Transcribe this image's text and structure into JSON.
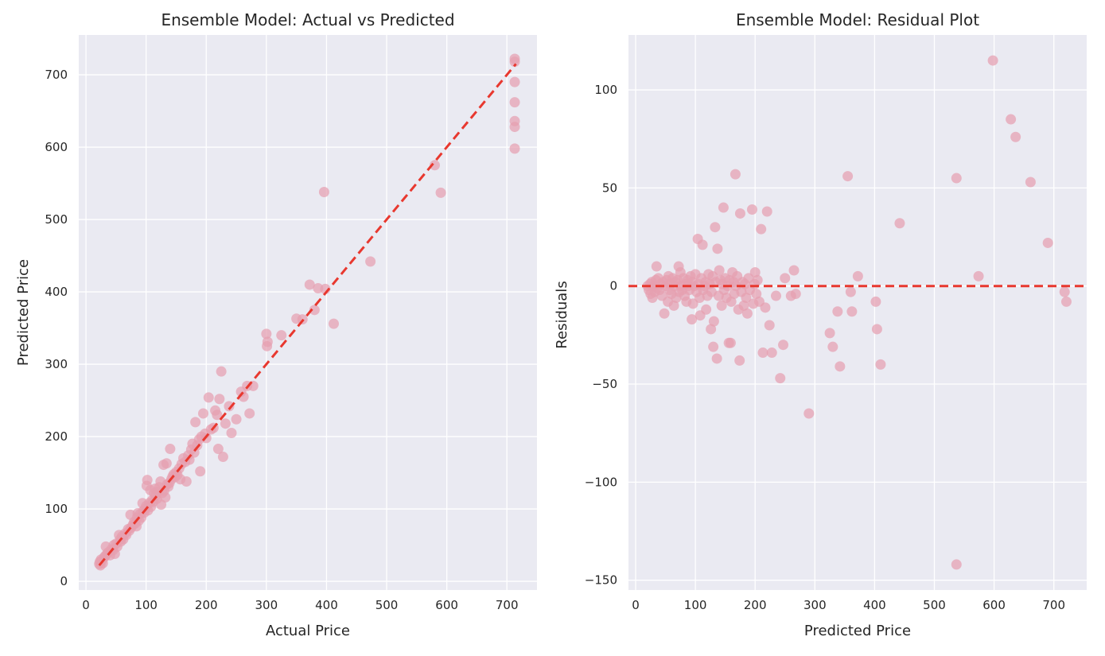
{
  "colors": {
    "panel_bg": "#eaeaf2",
    "grid": "#ffffff",
    "point": "#e69fb0",
    "ref_line": "#e8382f",
    "text": "#262626"
  },
  "chart_data": [
    {
      "type": "scatter",
      "title": "Ensemble Model: Actual vs Predicted",
      "xlabel": "Actual Price",
      "ylabel": "Predicted Price",
      "xlim": [
        -12,
        750
      ],
      "ylim": [
        -12,
        755
      ],
      "xticks": [
        0,
        100,
        200,
        300,
        400,
        500,
        600,
        700
      ],
      "yticks": [
        0,
        100,
        200,
        300,
        400,
        500,
        600,
        700
      ],
      "grid": true,
      "reference_line": {
        "style": "dashed",
        "from": [
          22,
          22
        ],
        "to": [
          715,
          715
        ]
      },
      "points": [
        [
          22,
          24
        ],
        [
          23,
          27
        ],
        [
          24,
          22
        ],
        [
          25,
          30
        ],
        [
          26,
          28
        ],
        [
          28,
          25
        ],
        [
          30,
          33
        ],
        [
          32,
          35
        ],
        [
          33,
          48
        ],
        [
          35,
          38
        ],
        [
          37,
          40
        ],
        [
          40,
          36
        ],
        [
          42,
          44
        ],
        [
          45,
          43
        ],
        [
          46,
          50
        ],
        [
          48,
          38
        ],
        [
          50,
          52
        ],
        [
          52,
          48
        ],
        [
          55,
          64
        ],
        [
          57,
          58
        ],
        [
          58,
          55
        ],
        [
          60,
          62
        ],
        [
          62,
          58
        ],
        [
          65,
          66
        ],
        [
          67,
          64
        ],
        [
          70,
          72
        ],
        [
          72,
          70
        ],
        [
          74,
          92
        ],
        [
          75,
          74
        ],
        [
          78,
          78
        ],
        [
          80,
          82
        ],
        [
          82,
          80
        ],
        [
          84,
          76
        ],
        [
          85,
          88
        ],
        [
          86,
          94
        ],
        [
          88,
          84
        ],
        [
          90,
          93
        ],
        [
          92,
          88
        ],
        [
          94,
          108
        ],
        [
          95,
          97
        ],
        [
          97,
          95
        ],
        [
          98,
          100
        ],
        [
          100,
          104
        ],
        [
          101,
          132
        ],
        [
          102,
          140
        ],
        [
          103,
          98
        ],
        [
          105,
          108
        ],
        [
          107,
          126
        ],
        [
          108,
          103
        ],
        [
          110,
          112
        ],
        [
          112,
          110
        ],
        [
          113,
          122
        ],
        [
          115,
          128
        ],
        [
          116,
          118
        ],
        [
          118,
          114
        ],
        [
          120,
          124
        ],
        [
          122,
          130
        ],
        [
          124,
          138
        ],
        [
          125,
          106
        ],
        [
          127,
          122
        ],
        [
          129,
          161
        ],
        [
          130,
          125
        ],
        [
          132,
          116
        ],
        [
          134,
          163
        ],
        [
          135,
          134
        ],
        [
          137,
          131
        ],
        [
          139,
          136
        ],
        [
          140,
          183
        ],
        [
          142,
          141
        ],
        [
          144,
          145
        ],
        [
          146,
          148
        ],
        [
          148,
          144
        ],
        [
          150,
          151
        ],
        [
          152,
          147
        ],
        [
          155,
          156
        ],
        [
          157,
          141
        ],
        [
          159,
          162
        ],
        [
          162,
          170
        ],
        [
          165,
          165
        ],
        [
          167,
          138
        ],
        [
          170,
          174
        ],
        [
          172,
          168
        ],
        [
          175,
          182
        ],
        [
          177,
          190
        ],
        [
          180,
          178
        ],
        [
          182,
          220
        ],
        [
          185,
          188
        ],
        [
          188,
          196
        ],
        [
          190,
          152
        ],
        [
          192,
          200
        ],
        [
          195,
          232
        ],
        [
          198,
          204
        ],
        [
          200,
          198
        ],
        [
          204,
          254
        ],
        [
          208,
          210
        ],
        [
          212,
          212
        ],
        [
          215,
          236
        ],
        [
          218,
          230
        ],
        [
          220,
          183
        ],
        [
          222,
          252
        ],
        [
          225,
          290
        ],
        [
          228,
          172
        ],
        [
          232,
          218
        ],
        [
          238,
          242
        ],
        [
          242,
          205
        ],
        [
          250,
          224
        ],
        [
          258,
          262
        ],
        [
          262,
          255
        ],
        [
          268,
          270
        ],
        [
          272,
          232
        ],
        [
          278,
          270
        ],
        [
          300,
          342
        ],
        [
          301,
          325
        ],
        [
          302,
          331
        ],
        [
          325,
          340
        ],
        [
          350,
          363
        ],
        [
          360,
          362
        ],
        [
          372,
          410
        ],
        [
          380,
          375
        ],
        [
          386,
          405
        ],
        [
          396,
          538
        ],
        [
          398,
          404
        ],
        [
          412,
          356
        ],
        [
          473,
          442
        ],
        [
          580,
          575
        ],
        [
          590,
          537
        ],
        [
          713,
          598
        ],
        [
          713,
          628
        ],
        [
          713,
          636
        ],
        [
          713,
          662
        ],
        [
          713,
          690
        ],
        [
          713,
          718
        ],
        [
          713,
          722
        ]
      ]
    },
    {
      "type": "scatter",
      "title": "Ensemble Model: Residual Plot",
      "xlabel": "Predicted Price",
      "ylabel": "Residuals",
      "xlim": [
        -12,
        755
      ],
      "ylim": [
        -155,
        128
      ],
      "xticks": [
        0,
        100,
        200,
        300,
        400,
        500,
        600,
        700
      ],
      "yticks": [
        -150,
        -100,
        -50,
        0,
        50,
        100
      ],
      "yticklabels": [
        "−150",
        "−100",
        "−50",
        "0",
        "50",
        "100"
      ],
      "grid": true,
      "reference_line": {
        "style": "dashed",
        "y": 0
      },
      "points": [
        [
          20,
          0
        ],
        [
          22,
          -2
        ],
        [
          24,
          1
        ],
        [
          25,
          -4
        ],
        [
          27,
          2
        ],
        [
          28,
          -6
        ],
        [
          30,
          0
        ],
        [
          32,
          -3
        ],
        [
          34,
          3
        ],
        [
          35,
          10
        ],
        [
          36,
          -1
        ],
        [
          38,
          4
        ],
        [
          40,
          -2
        ],
        [
          42,
          1
        ],
        [
          44,
          -5
        ],
        [
          46,
          2
        ],
        [
          48,
          -14
        ],
        [
          50,
          0
        ],
        [
          52,
          3
        ],
        [
          54,
          -8
        ],
        [
          55,
          5
        ],
        [
          57,
          -2
        ],
        [
          58,
          1
        ],
        [
          60,
          -4
        ],
        [
          62,
          4
        ],
        [
          64,
          -10
        ],
        [
          65,
          0
        ],
        [
          67,
          2
        ],
        [
          68,
          -6
        ],
        [
          70,
          3
        ],
        [
          72,
          10
        ],
        [
          73,
          -3
        ],
        [
          75,
          7
        ],
        [
          76,
          0
        ],
        [
          78,
          -2
        ],
        [
          80,
          4
        ],
        [
          82,
          -5
        ],
        [
          84,
          1
        ],
        [
          85,
          -8
        ],
        [
          87,
          3
        ],
        [
          88,
          0
        ],
        [
          90,
          -2
        ],
        [
          92,
          5
        ],
        [
          94,
          -17
        ],
        [
          95,
          2
        ],
        [
          96,
          -9
        ],
        [
          98,
          0
        ],
        [
          100,
          6
        ],
        [
          102,
          -3
        ],
        [
          104,
          24
        ],
        [
          105,
          1
        ],
        [
          107,
          -6
        ],
        [
          108,
          -15
        ],
        [
          110,
          4
        ],
        [
          112,
          21
        ],
        [
          113,
          -2
        ],
        [
          115,
          0
        ],
        [
          117,
          2
        ],
        [
          118,
          -12
        ],
        [
          120,
          -5
        ],
        [
          122,
          6
        ],
        [
          124,
          1
        ],
        [
          126,
          -22
        ],
        [
          127,
          -3
        ],
        [
          129,
          5
        ],
        [
          130,
          -31
        ],
        [
          131,
          -18
        ],
        [
          133,
          30
        ],
        [
          134,
          2
        ],
        [
          136,
          -37
        ],
        [
          137,
          19
        ],
        [
          139,
          -5
        ],
        [
          140,
          8
        ],
        [
          142,
          3
        ],
        [
          144,
          -10
        ],
        [
          145,
          1
        ],
        [
          147,
          40
        ],
        [
          148,
          -2
        ],
        [
          150,
          4
        ],
        [
          152,
          -6
        ],
        [
          154,
          0
        ],
        [
          156,
          -29
        ],
        [
          157,
          3
        ],
        [
          159,
          -29
        ],
        [
          160,
          -8
        ],
        [
          162,
          7
        ],
        [
          164,
          2
        ],
        [
          165,
          -4
        ],
        [
          167,
          57
        ],
        [
          168,
          0
        ],
        [
          170,
          5
        ],
        [
          172,
          -12
        ],
        [
          174,
          -38
        ],
        [
          175,
          37
        ],
        [
          177,
          -3
        ],
        [
          179,
          2
        ],
        [
          181,
          -10
        ],
        [
          183,
          1
        ],
        [
          185,
          -6
        ],
        [
          187,
          -14
        ],
        [
          189,
          4
        ],
        [
          191,
          -2
        ],
        [
          195,
          39
        ],
        [
          197,
          -9
        ],
        [
          199,
          1
        ],
        [
          200,
          7
        ],
        [
          202,
          -4
        ],
        [
          204,
          3
        ],
        [
          207,
          -8
        ],
        [
          210,
          29
        ],
        [
          213,
          -34
        ],
        [
          217,
          -11
        ],
        [
          220,
          38
        ],
        [
          224,
          -20
        ],
        [
          228,
          -34
        ],
        [
          235,
          -5
        ],
        [
          242,
          -47
        ],
        [
          247,
          -30
        ],
        [
          250,
          4
        ],
        [
          260,
          -5
        ],
        [
          265,
          8
        ],
        [
          268,
          -4
        ],
        [
          290,
          -65
        ],
        [
          325,
          -24
        ],
        [
          330,
          -31
        ],
        [
          338,
          -13
        ],
        [
          342,
          -41
        ],
        [
          355,
          56
        ],
        [
          360,
          -3
        ],
        [
          362,
          -13
        ],
        [
          372,
          5
        ],
        [
          402,
          -8
        ],
        [
          404,
          -22
        ],
        [
          410,
          -40
        ],
        [
          442,
          32
        ],
        [
          537,
          55
        ],
        [
          537,
          -142
        ],
        [
          574,
          5
        ],
        [
          598,
          115
        ],
        [
          628,
          85
        ],
        [
          636,
          76
        ],
        [
          661,
          53
        ],
        [
          690,
          22
        ],
        [
          718,
          -3
        ],
        [
          721,
          -8
        ]
      ]
    }
  ]
}
